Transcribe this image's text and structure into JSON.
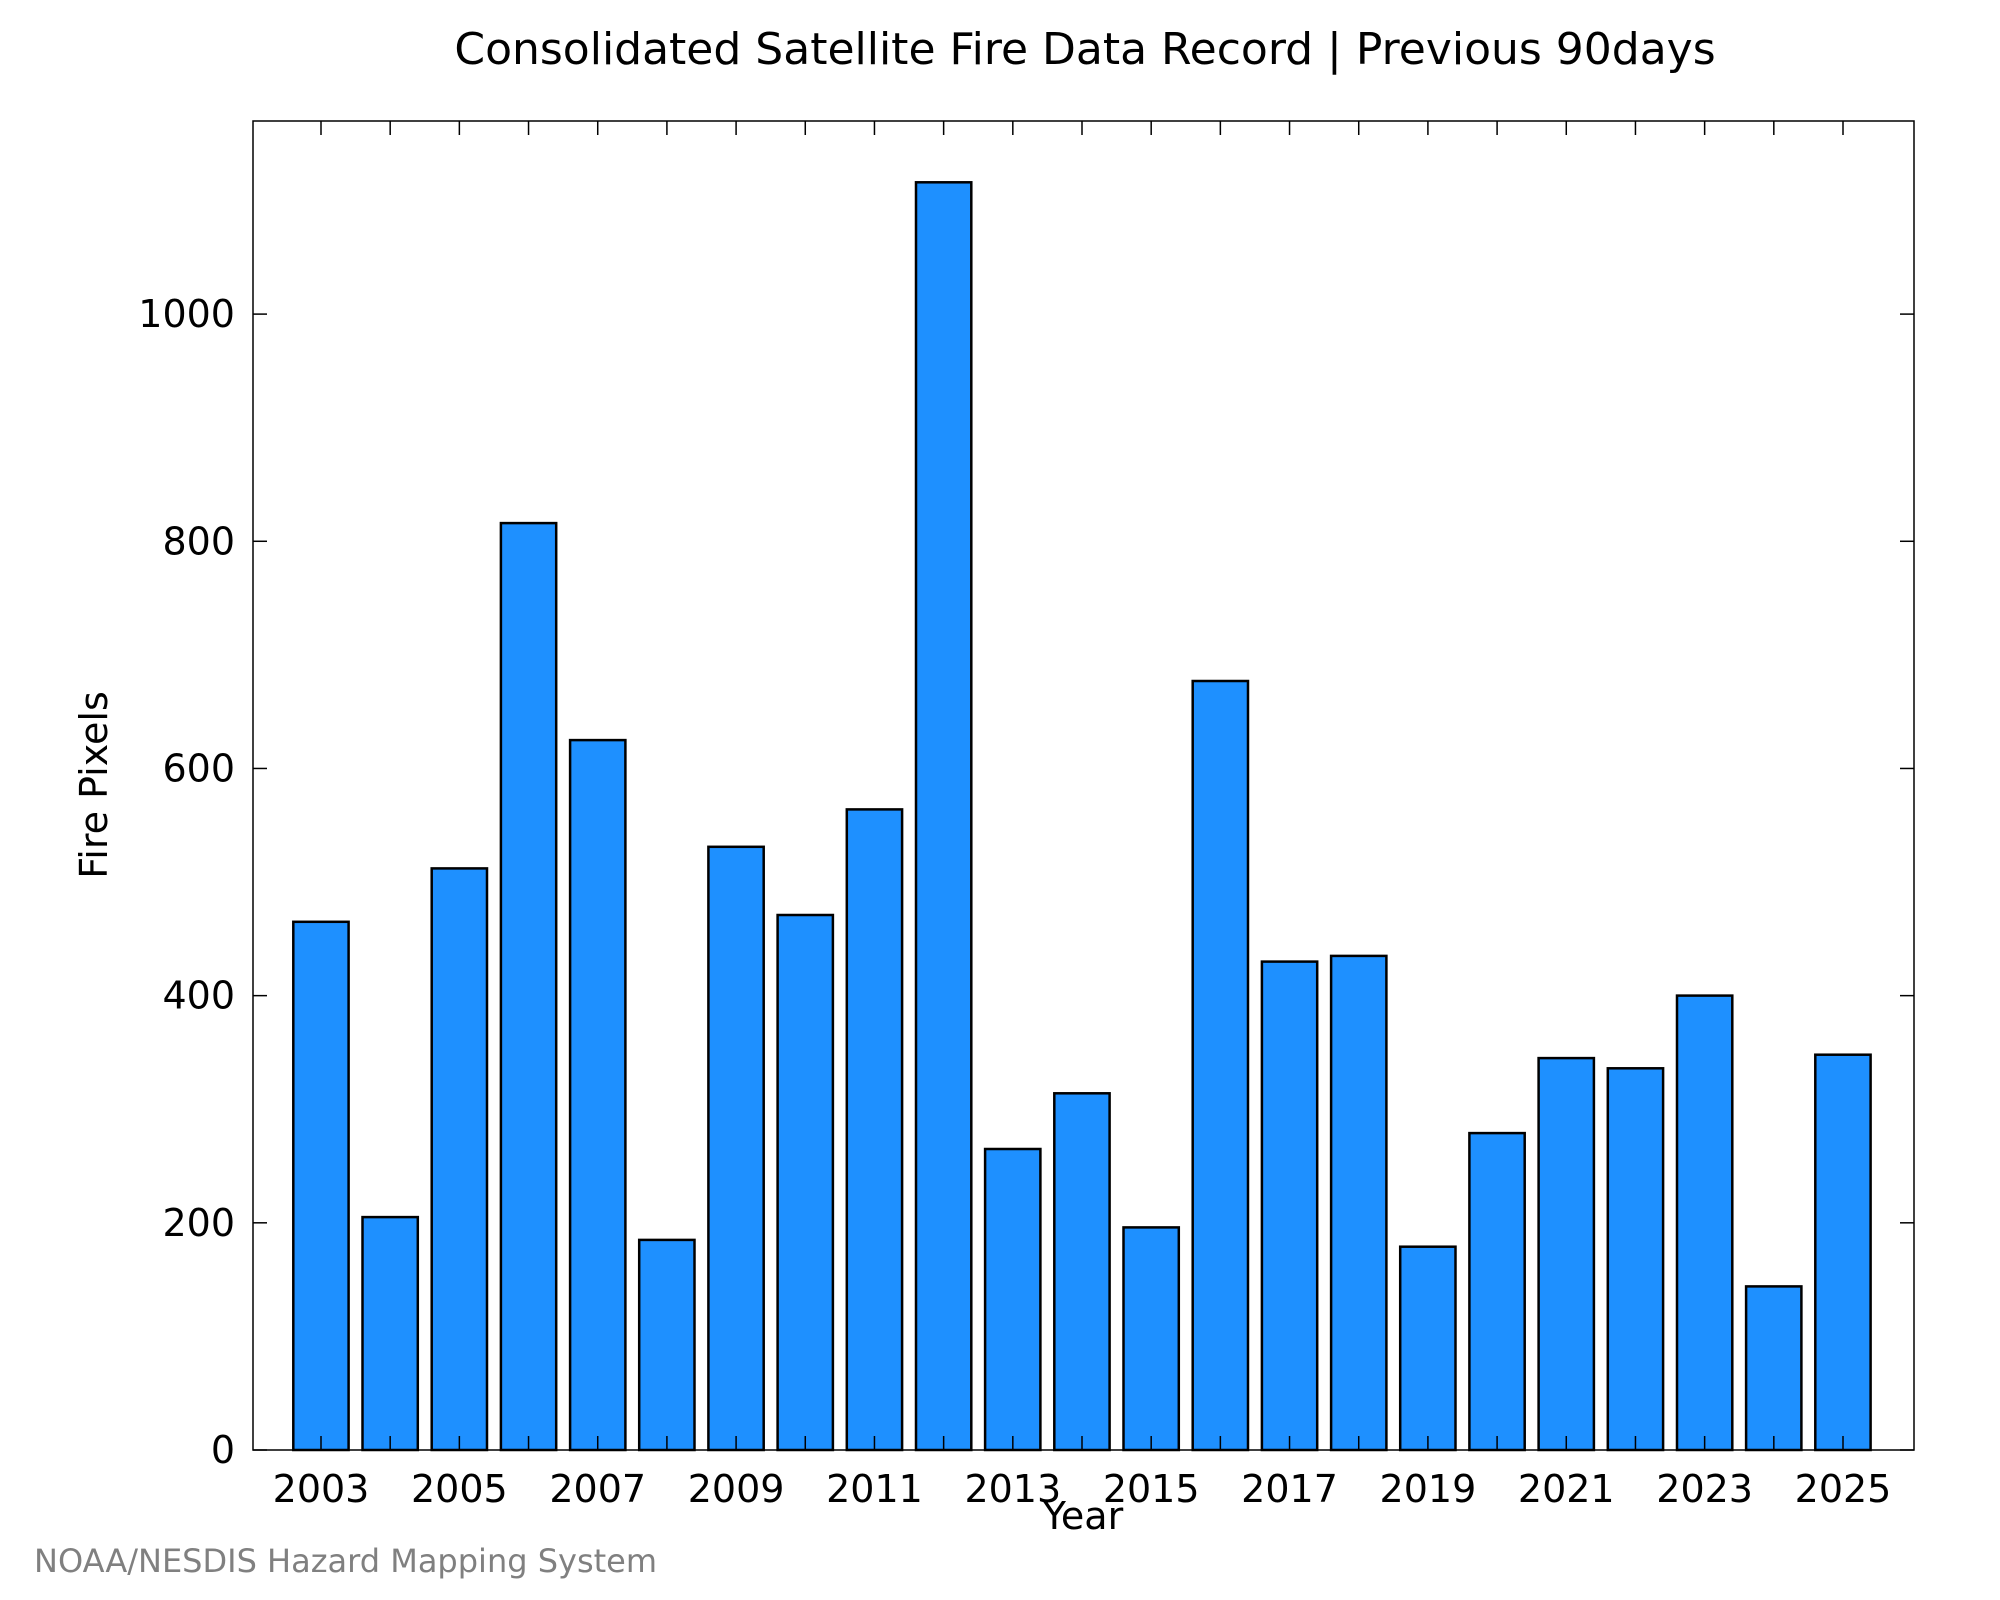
{
  "chart_data": {
    "type": "bar",
    "title": "Consolidated Satellite Fire Data Record | Previous 90days",
    "xlabel": "Year",
    "ylabel": "Fire Pixels",
    "credit": "NOAA/NESDIS Hazard Mapping System",
    "categories": [
      "2003",
      "2004",
      "2005",
      "2006",
      "2007",
      "2008",
      "2009",
      "2010",
      "2011",
      "2012",
      "2013",
      "2014",
      "2015",
      "2016",
      "2017",
      "2018",
      "2019",
      "2020",
      "2021",
      "2022",
      "2023",
      "2024",
      "2025"
    ],
    "x_tick_labels": [
      "2003",
      "2005",
      "2007",
      "2009",
      "2011",
      "2013",
      "2015",
      "2017",
      "2019",
      "2021",
      "2023",
      "2025"
    ],
    "values": [
      465,
      205,
      512,
      816,
      625,
      185,
      531,
      471,
      564,
      1116,
      265,
      314,
      196,
      677,
      430,
      435,
      179,
      279,
      345,
      336,
      400,
      144,
      348
    ],
    "ylim": [
      0,
      1170
    ],
    "y_ticks": [
      0,
      200,
      400,
      600,
      800,
      1000
    ],
    "bar_color": "#1e90ff",
    "bar_edge_color": "#000000",
    "grid": false,
    "legend": "none"
  }
}
